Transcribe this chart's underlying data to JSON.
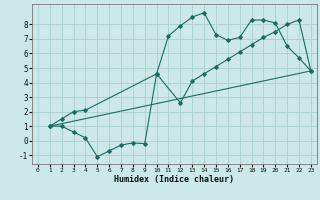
{
  "xlabel": "Humidex (Indice chaleur)",
  "background_color": "#cce8e8",
  "grid_color": "#aacfcf",
  "line_color": "#1a6b63",
  "xlim": [
    -0.5,
    23.5
  ],
  "ylim": [
    -1.6,
    9.4
  ],
  "xticks": [
    0,
    1,
    2,
    3,
    4,
    5,
    6,
    7,
    8,
    9,
    10,
    11,
    12,
    13,
    14,
    15,
    16,
    17,
    18,
    19,
    20,
    21,
    22,
    23
  ],
  "yticks": [
    -1,
    0,
    1,
    2,
    3,
    4,
    5,
    6,
    7,
    8
  ],
  "line1_x": [
    1,
    2,
    3,
    4,
    5,
    6,
    7,
    8,
    9,
    10,
    11,
    12,
    13,
    14,
    15,
    16,
    17,
    18,
    19,
    20,
    21,
    22,
    23
  ],
  "line1_y": [
    1.0,
    1.0,
    0.6,
    0.2,
    -1.1,
    -0.7,
    -0.3,
    -0.15,
    -0.2,
    4.6,
    7.2,
    7.9,
    8.5,
    8.8,
    7.3,
    6.9,
    7.1,
    8.3,
    8.3,
    8.1,
    6.5,
    5.7,
    4.8
  ],
  "line2_x": [
    1,
    2,
    3,
    4,
    10,
    12,
    13,
    14,
    15,
    16,
    17,
    18,
    19,
    20,
    21,
    22,
    23
  ],
  "line2_y": [
    1.0,
    1.5,
    2.0,
    2.1,
    4.6,
    2.6,
    4.1,
    4.6,
    5.1,
    5.6,
    6.1,
    6.6,
    7.1,
    7.5,
    8.0,
    8.3,
    4.8
  ],
  "line3_x": [
    1,
    23
  ],
  "line3_y": [
    1.0,
    4.8
  ]
}
